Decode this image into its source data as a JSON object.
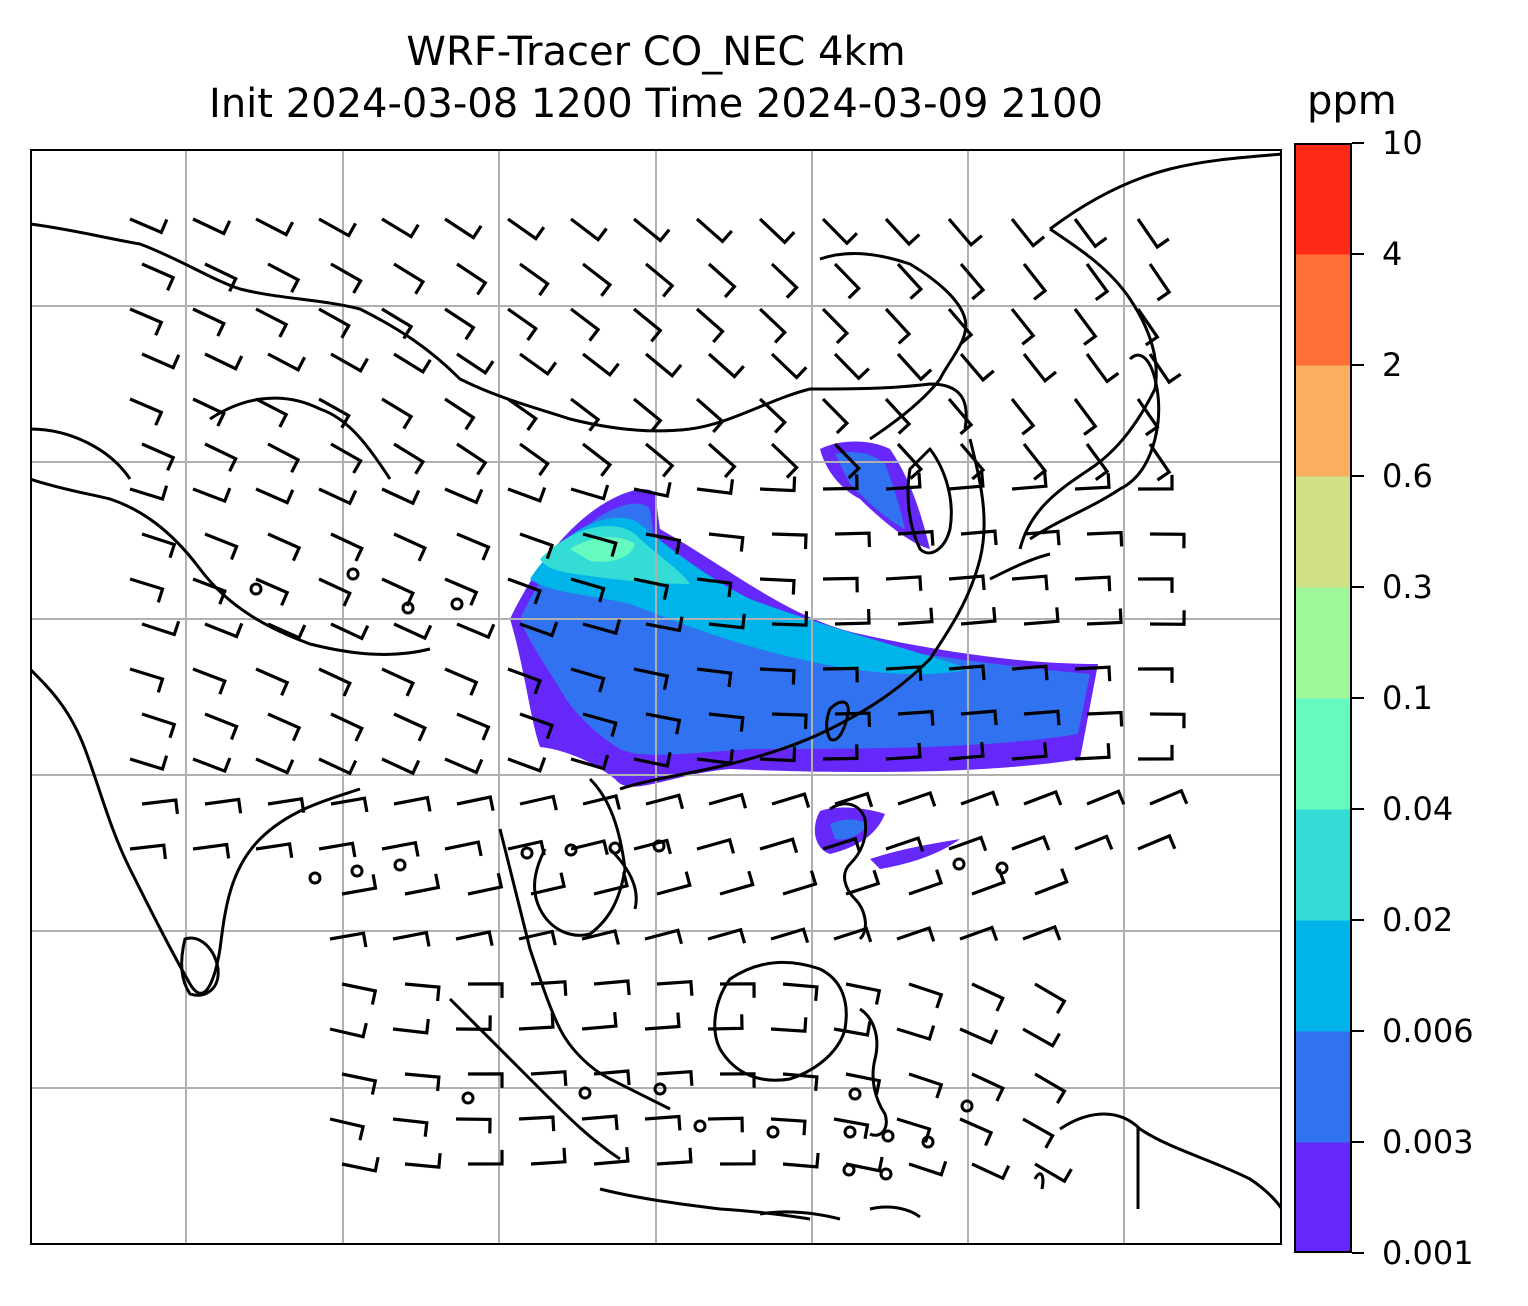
{
  "title_line1": "WRF-Tracer CO_NEC 4km",
  "title_line2": "Init 2024-03-08 1200 Time 2024-03-09 2100",
  "colorbar": {
    "units": "ppm",
    "levels": [
      "0.001",
      "0.003",
      "0.006",
      "0.02",
      "0.04",
      "0.1",
      "0.3",
      "0.6",
      "2",
      "4",
      "10"
    ],
    "colors": [
      "#6628f8",
      "#3072f0",
      "#00b4ea",
      "#33dcd4",
      "#66fac0",
      "#9ef89a",
      "#d0e086",
      "#fcae60",
      "#fe7038",
      "#fe2a16"
    ]
  },
  "map": {
    "field": "CO tracer concentration",
    "wind_barbs": "shown",
    "coastlines": "shown",
    "gridlines": "on"
  }
}
